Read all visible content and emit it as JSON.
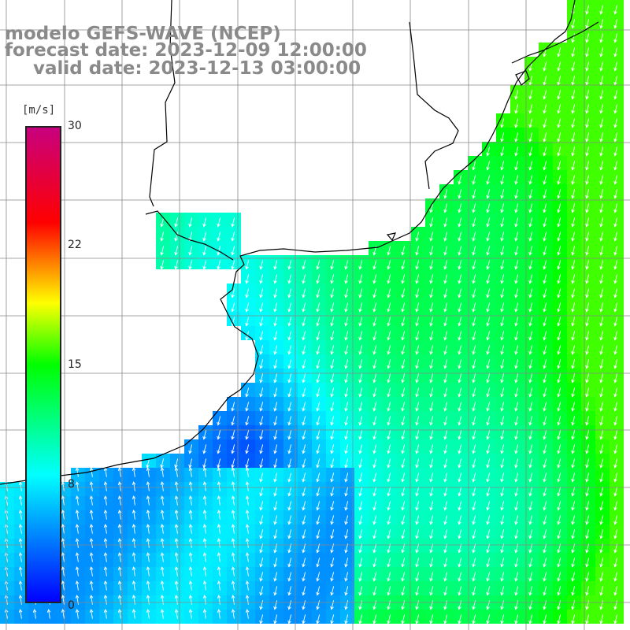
{
  "header": {
    "line1": "modelo GEFS-WAVE (NCEP)",
    "line2": "forecast date: 2023-12-09 12:00:00",
    "line3": "valid date: 2023-12-13 03:00:00"
  },
  "colorbar": {
    "unit": "[m/s]",
    "min": 0,
    "max": 30,
    "ticks": [
      "30",
      "22",
      "15",
      "8",
      "0"
    ],
    "tick_values": [
      30,
      22,
      15,
      8,
      0
    ],
    "colors": [
      "#0000ff",
      "#00ffff",
      "#00ff00",
      "#ffff00",
      "#ff0000",
      "#c8007e"
    ]
  },
  "map": {
    "land_color": "#ffffff",
    "coast_color": "#000000",
    "grid_color": "#888888"
  }
}
